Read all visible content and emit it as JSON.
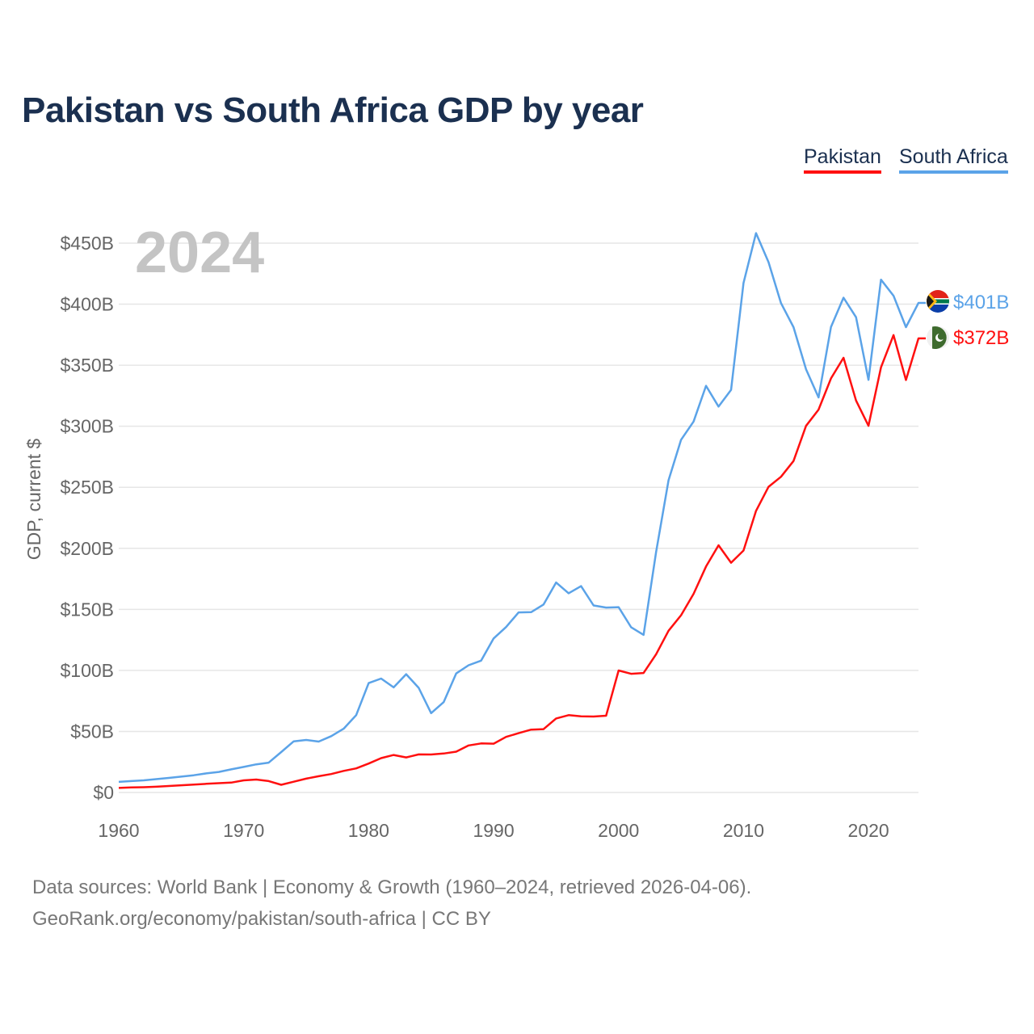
{
  "header": {
    "title": "Pakistan vs South Africa GDP by year"
  },
  "legend": [
    {
      "label": "Pakistan",
      "color": "#ff1010"
    },
    {
      "label": "South Africa",
      "color": "#5ba3e8"
    }
  ],
  "footer": {
    "line1": "Data sources: World Bank | Economy & Growth (1960–2024, retrieved 2026-04-06).",
    "line2": "GeoRank.org/economy/pakistan/south-africa | CC BY"
  },
  "chart_data": {
    "type": "line",
    "title": "Pakistan vs South Africa GDP by year",
    "year_watermark": "2024",
    "xlabel": "",
    "ylabel": "GDP, current $",
    "xlim": [
      1960,
      2024
    ],
    "ylim": [
      0,
      450
    ],
    "x_ticks": [
      1960,
      1970,
      1980,
      1990,
      2000,
      2010,
      2020
    ],
    "x_tick_labels": [
      "1960",
      "1970",
      "1980",
      "1990",
      "2000",
      "2010",
      "2020"
    ],
    "y_ticks": [
      0,
      50,
      100,
      150,
      200,
      250,
      300,
      350,
      400,
      450
    ],
    "y_tick_labels": [
      "$0",
      "$50B",
      "$100B",
      "$150B",
      "$200B",
      "$250B",
      "$300B",
      "$350B",
      "$400B",
      "$450B"
    ],
    "grid": true,
    "legend_position": "top-right",
    "x_start": 1960,
    "series": [
      {
        "name": "Pakistan",
        "color": "#ff1010",
        "end_label": "$372B",
        "flag": "pakistan-flag",
        "values": [
          3.7,
          4.1,
          4.3,
          4.7,
          5.3,
          5.9,
          6.4,
          7.1,
          7.6,
          8.1,
          9.9,
          10.6,
          9.3,
          6.3,
          8.8,
          11.3,
          13.3,
          15.1,
          17.7,
          19.7,
          23.7,
          28.1,
          30.7,
          28.7,
          31.2,
          31.1,
          31.9,
          33.4,
          38.5,
          40.2,
          40.0,
          45.5,
          48.6,
          51.5,
          51.9,
          60.6,
          63.3,
          62.4,
          62.2,
          62.9,
          99.9,
          97.2,
          97.9,
          113.2,
          132.5,
          145.2,
          162.7,
          185.1,
          202.5,
          188.2,
          198.2,
          230.7,
          250.4,
          258.6,
          271.5,
          300.3,
          313.6,
          339.2,
          356.1,
          321.1,
          300.4,
          348.3,
          374.7,
          337.9,
          372
        ]
      },
      {
        "name": "South Africa",
        "color": "#5ba3e8",
        "end_label": "$401B",
        "flag": "south-africa-flag",
        "values": [
          8.7,
          9.3,
          9.9,
          10.9,
          11.9,
          13.0,
          14.1,
          15.6,
          16.8,
          18.9,
          20.9,
          23.0,
          24.4,
          33.1,
          41.9,
          43.0,
          41.7,
          46.1,
          52.2,
          63.3,
          89.6,
          93.3,
          86.1,
          96.9,
          85.7,
          65.0,
          74.0,
          97.5,
          104.2,
          108.0,
          126.2,
          135.5,
          147.5,
          147.7,
          154.0,
          172.0,
          163.2,
          169.0,
          153.2,
          151.5,
          151.8,
          135.4,
          129.1,
          197.0,
          255.8,
          288.9,
          303.9,
          333.1,
          316.1,
          329.8,
          417.4,
          458.2,
          434.4,
          400.9,
          381.2,
          346.7,
          323.6,
          381.4,
          405.3,
          389.3,
          338.0,
          420.1,
          406.9,
          381.2,
          401
        ]
      }
    ]
  }
}
